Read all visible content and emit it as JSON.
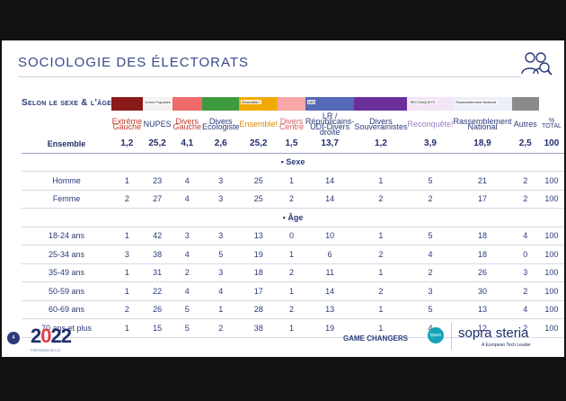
{
  "page": {
    "title": "SOCIOLOGIE DES ÉLECTORATS",
    "subtitle": "Selon le sexe & l'âge",
    "page_number": "4",
    "logo_year": "2022",
    "logo_sub": "PRÉSIDENTIELLE",
    "game_changers": "GAME CHANGERS",
    "ipsos": "Ipsos",
    "sopra": "sopra steria",
    "sopra_tagline": "A European Tech Leader"
  },
  "columns": [
    {
      "label": "Extrême Gauche",
      "color": "#8b1a1a",
      "badge": ""
    },
    {
      "label": "NUPES",
      "color": "#f4f1f1",
      "badge": "Union Populaire"
    },
    {
      "label": "Divers Gauche",
      "color": "#f06a6a",
      "badge": ""
    },
    {
      "label": "Divers Ecologiste",
      "color": "#3e9a3e",
      "badge": ""
    },
    {
      "label": "Ensemble!",
      "color": "#f2a900",
      "badge": "Ensemble !"
    },
    {
      "label": "Divers Centre",
      "color": "#f7a6a6",
      "badge": ""
    },
    {
      "label": "LR / Républicains-UDI-Divers droite",
      "color": "#5668b8",
      "badge": "UDI"
    },
    {
      "label": "Divers Souverainistes",
      "color": "#6a2f9a",
      "badge": ""
    },
    {
      "label": "Reconquête!",
      "color": "#f4e4f8",
      "badge": "RECONQUETE"
    },
    {
      "label": "Rassemblement National",
      "color": "#eceff8",
      "badge": "Rassemblement National"
    },
    {
      "label": "Autres",
      "color": "#8a8a8a",
      "badge": ""
    },
    {
      "label": "% TOTAL",
      "color": "#ffffff",
      "badge": ""
    }
  ],
  "rows": [
    {
      "label": "Ensemble",
      "values": [
        "1,2",
        "25,2",
        "4,1",
        "2,6",
        "25,2",
        "1,5",
        "13,7",
        "1,2",
        "3,9",
        "18,9",
        "2,5",
        "100"
      ]
    },
    {
      "section": "Sexe"
    },
    {
      "label": "Homme",
      "values": [
        "1",
        "23",
        "4",
        "3",
        "25",
        "1",
        "14",
        "1",
        "5",
        "21",
        "2",
        "100"
      ]
    },
    {
      "label": "Femme",
      "values": [
        "2",
        "27",
        "4",
        "3",
        "25",
        "2",
        "14",
        "2",
        "2",
        "17",
        "2",
        "100"
      ]
    },
    {
      "section": "Âge"
    },
    {
      "label": "18-24 ans",
      "values": [
        "1",
        "42",
        "3",
        "3",
        "13",
        "0",
        "10",
        "1",
        "5",
        "18",
        "4",
        "100"
      ]
    },
    {
      "label": "25-34 ans",
      "values": [
        "3",
        "38",
        "4",
        "5",
        "19",
        "1",
        "6",
        "2",
        "4",
        "18",
        "0",
        "100"
      ]
    },
    {
      "label": "35-49 ans",
      "values": [
        "1",
        "31",
        "2",
        "3",
        "18",
        "2",
        "11",
        "1",
        "2",
        "26",
        "3",
        "100"
      ]
    },
    {
      "label": "50-59 ans",
      "values": [
        "1",
        "22",
        "4",
        "4",
        "17",
        "1",
        "14",
        "2",
        "3",
        "30",
        "2",
        "100"
      ]
    },
    {
      "label": "60-69 ans",
      "values": [
        "2",
        "26",
        "5",
        "1",
        "28",
        "2",
        "13",
        "1",
        "5",
        "13",
        "4",
        "100"
      ]
    },
    {
      "label": "70 ans et plus",
      "values": [
        "1",
        "15",
        "5",
        "2",
        "38",
        "1",
        "19",
        "1",
        "4",
        "12",
        "2",
        "100"
      ]
    }
  ]
}
